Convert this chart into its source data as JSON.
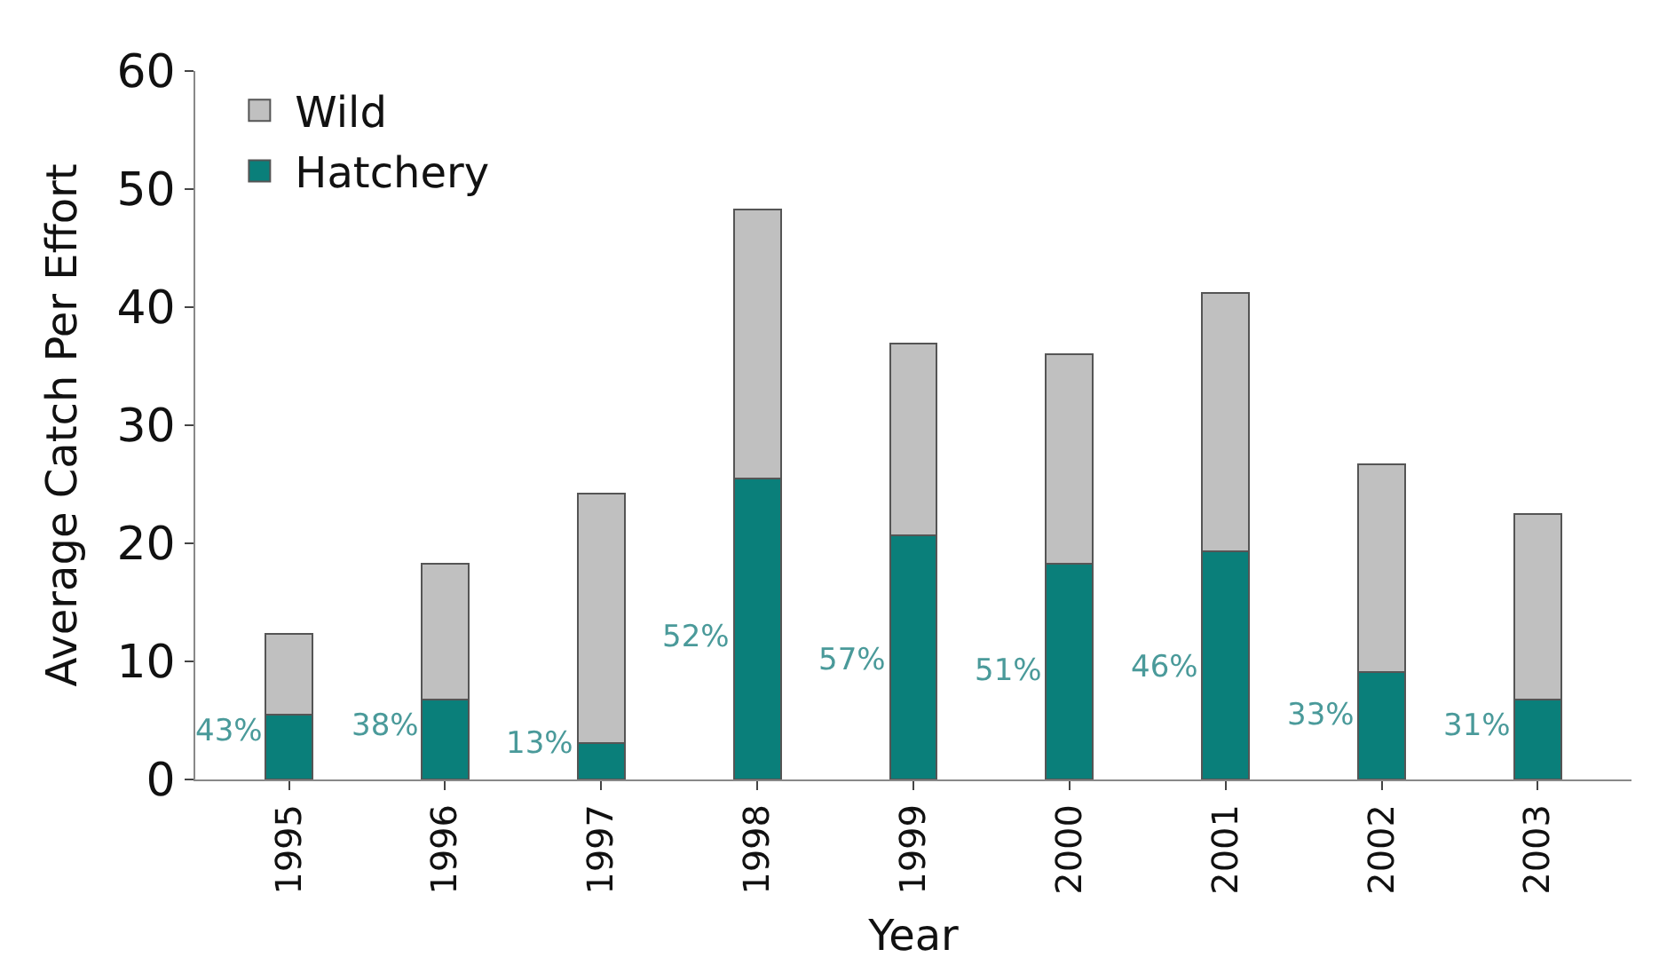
{
  "chart_data": {
    "type": "bar",
    "stacked": true,
    "xlabel": "Year",
    "ylabel": "Average Catch Per Effort",
    "categories": [
      "1995",
      "1996",
      "1997",
      "1998",
      "1999",
      "2000",
      "2001",
      "2002",
      "2003"
    ],
    "series": [
      {
        "name": "Hatchery",
        "color": "#0a7f7a",
        "values": [
          5.5,
          6.8,
          3.1,
          25.5,
          20.7,
          18.3,
          19.3,
          9.1,
          6.8
        ]
      },
      {
        "name": "Wild",
        "color": "#c0c0c0",
        "values": [
          6.8,
          11.5,
          21.1,
          22.8,
          16.2,
          17.7,
          21.9,
          17.6,
          15.7
        ]
      }
    ],
    "annotations": [
      "43%",
      "38%",
      "13%",
      "52%",
      "57%",
      "51%",
      "46%",
      "33%",
      "31%"
    ],
    "ylim": [
      0,
      60
    ],
    "yticks": [
      0,
      10,
      20,
      30,
      40,
      50,
      60
    ],
    "legend": "top left"
  }
}
